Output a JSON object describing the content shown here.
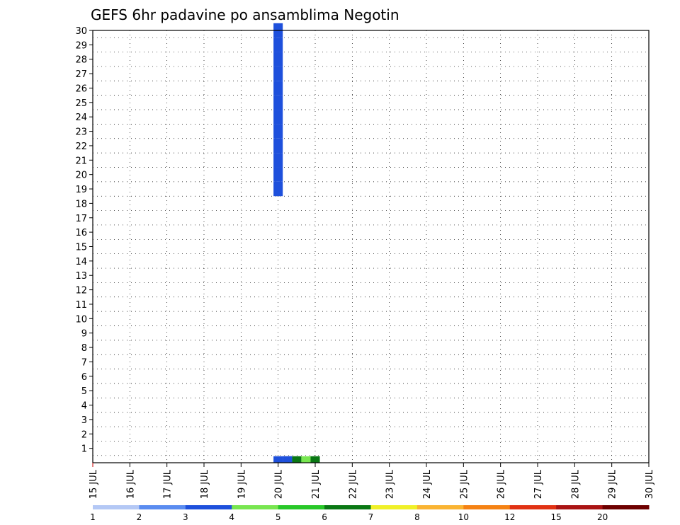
{
  "chart_data": {
    "type": "heatmap",
    "title": "GEFS 6hr padavine po ansamblima Negotin",
    "x_ticks": [
      "15 JUL",
      "16 JUL",
      "17 JUL",
      "18 JUL",
      "19 JUL",
      "20 JUL",
      "21 JUL",
      "22 JUL",
      "23 JUL",
      "24 JUL",
      "25 JUL",
      "26 JUL",
      "27 JUL",
      "28 JUL",
      "29 JUL",
      "30 JUL"
    ],
    "y_ticks": [
      "1",
      "2",
      "3",
      "4",
      "5",
      "6",
      "7",
      "8",
      "9",
      "10",
      "11",
      "12",
      "13",
      "14",
      "15",
      "16",
      "17",
      "18",
      "19",
      "20",
      "21",
      "22",
      "23",
      "24",
      "25",
      "26",
      "27",
      "28",
      "29",
      "30"
    ],
    "xlim_days": [
      15,
      30
    ],
    "ylim_members": [
      0,
      30
    ],
    "grid": true,
    "colorbar": {
      "labels": [
        "1",
        "2",
        "3",
        "4",
        "5",
        "6",
        "7",
        "8",
        "10",
        "12",
        "15",
        "20"
      ],
      "colors": [
        "#b4c8f5",
        "#5a8cf0",
        "#1e50dc",
        "#78e650",
        "#28c828",
        "#0a7814",
        "#f0f028",
        "#fab432",
        "#f58214",
        "#e13214",
        "#aa1414",
        "#6e0000"
      ]
    },
    "cells": [
      [
        20.0,
        0,
        2
      ],
      [
        20.75,
        0,
        3
      ],
      [
        20.5,
        0,
        5
      ],
      [
        21.0,
        0,
        5
      ],
      [
        20.25,
        0,
        2
      ],
      [
        20.25,
        0,
        2
      ],
      [
        20.0,
        30,
        2
      ],
      [
        20.0,
        29,
        2
      ],
      [
        20.0,
        28,
        2
      ],
      [
        20.0,
        27,
        2
      ],
      [
        20.0,
        26,
        2
      ],
      [
        20.0,
        25,
        2
      ],
      [
        20.0,
        24,
        2
      ],
      [
        20.0,
        23,
        2
      ],
      [
        20.0,
        22,
        2
      ],
      [
        20.0,
        21,
        2
      ],
      [
        20.0,
        20,
        2
      ],
      [
        20.0,
        19,
        2
      ]
    ]
  }
}
